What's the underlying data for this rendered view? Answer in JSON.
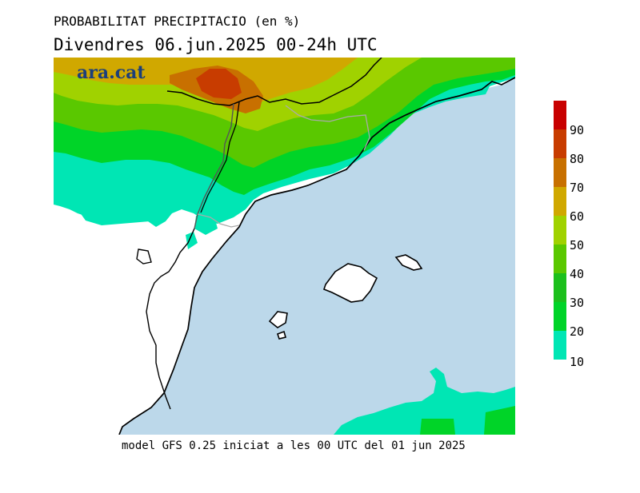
{
  "header": {
    "title": "PROBABILITAT PRECIPITACIO (en %)",
    "subtitle": "Divendres  06.jun.2025 00-24h UTC"
  },
  "logo": {
    "text": "ara.cat"
  },
  "footer": {
    "text": "model GFS 0.25 iniciat a les 00 UTC del 01 jun 2025"
  },
  "legend": {
    "items": [
      {
        "label": "",
        "color": "#c80000"
      },
      {
        "label": "90",
        "color": "#c83c00"
      },
      {
        "label": "80",
        "color": "#c87000"
      },
      {
        "label": "70",
        "color": "#d0a800"
      },
      {
        "label": "60",
        "color": "#a0d200"
      },
      {
        "label": "50",
        "color": "#5ac800"
      },
      {
        "label": "40",
        "color": "#1cc01c"
      },
      {
        "label": "30",
        "color": "#00d428"
      },
      {
        "label": "20",
        "color": "#00e6b4"
      },
      {
        "label": "10",
        "color": ""
      }
    ]
  },
  "colors": {
    "sea": "#bcd8ea",
    "land": "#ffffff",
    "p10": "#00e6b4",
    "p20": "#00d428",
    "p30": "#1cc01c",
    "p40": "#5ac800",
    "p50": "#a0d200",
    "p60": "#d0a800",
    "p70": "#c87000",
    "p80": "#c83c00"
  }
}
